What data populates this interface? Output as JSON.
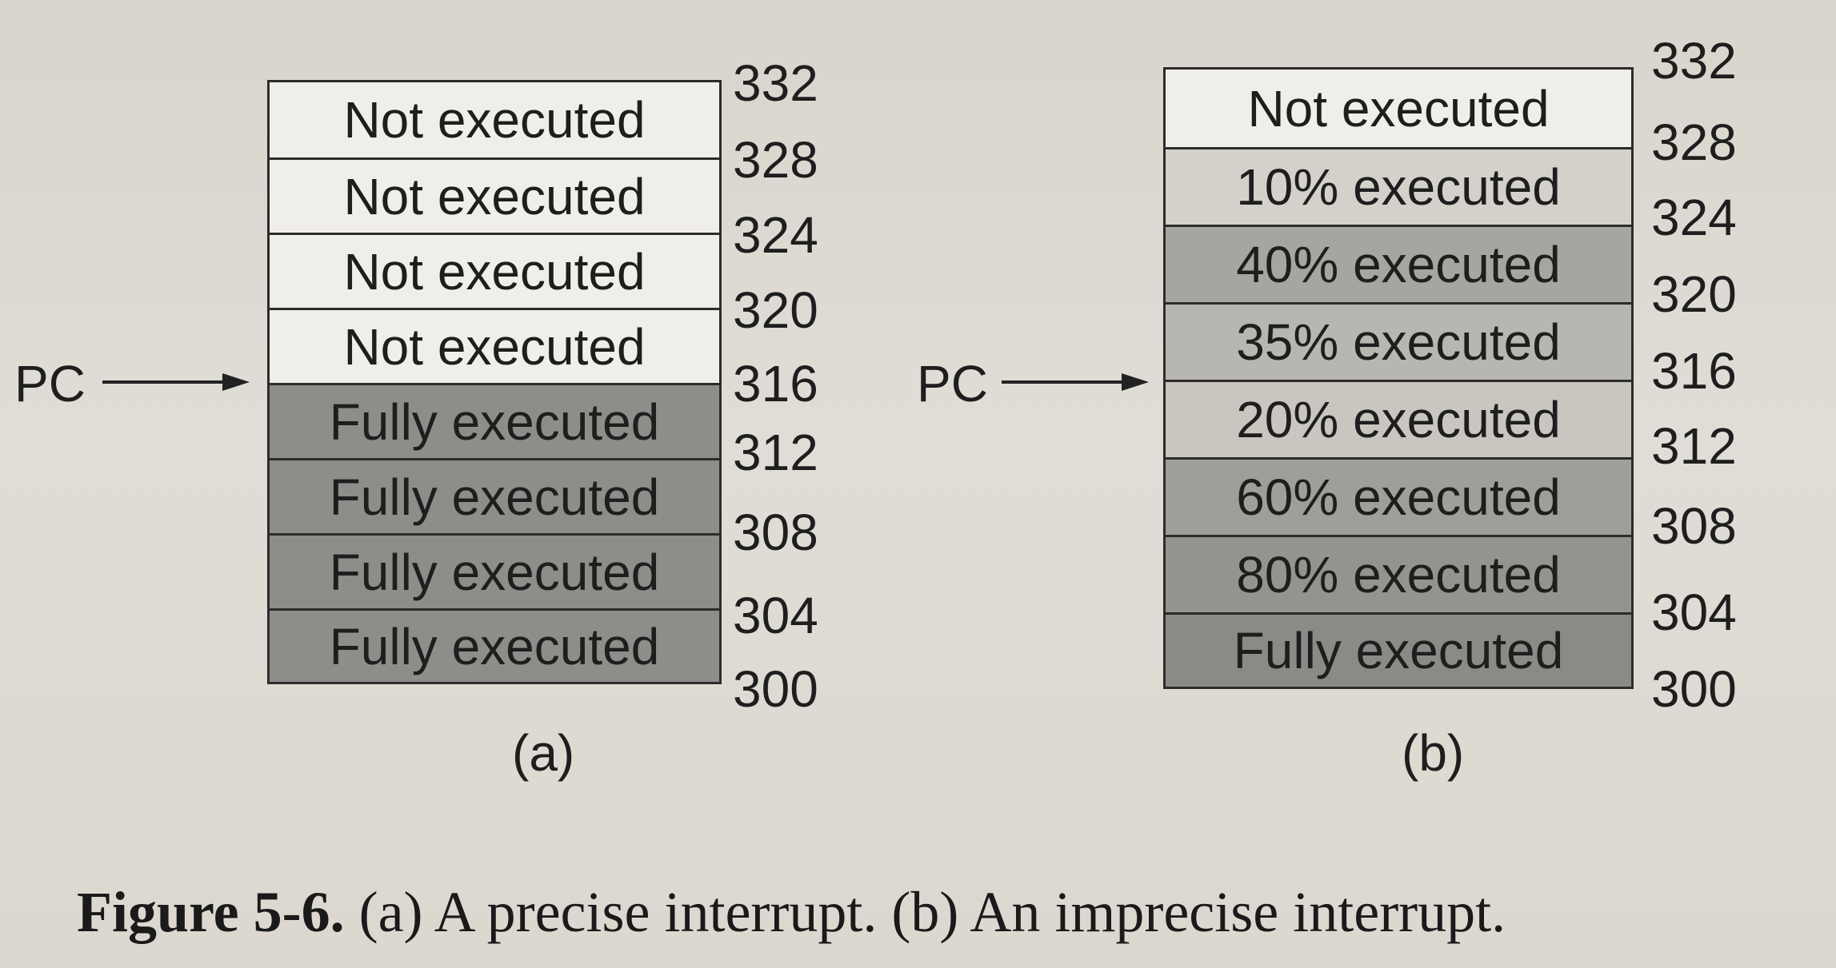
{
  "diagram_a": {
    "label": "(a)",
    "pc_label": "PC",
    "addresses": [
      "332",
      "328",
      "324",
      "320",
      "316",
      "312",
      "308",
      "304",
      "300"
    ],
    "cells": [
      {
        "text": "Not executed",
        "shade": "#f0eee8"
      },
      {
        "text": "Not executed",
        "shade": "#f0eee8"
      },
      {
        "text": "Not executed",
        "shade": "#f0eee8"
      },
      {
        "text": "Not executed",
        "shade": "#f0eee8"
      },
      {
        "text": "Fully executed",
        "shade": "#8f8d89"
      },
      {
        "text": "Fully executed",
        "shade": "#8f8d89"
      },
      {
        "text": "Fully executed",
        "shade": "#8f8d89"
      },
      {
        "text": "Fully executed",
        "shade": "#8f8d89"
      }
    ],
    "pc_points_at_address": "316"
  },
  "diagram_b": {
    "label": "(b)",
    "pc_label": "PC",
    "addresses": [
      "332",
      "328",
      "324",
      "320",
      "316",
      "312",
      "308",
      "304",
      "300"
    ],
    "cells": [
      {
        "text": "Not executed",
        "shade": "#f0eee8"
      },
      {
        "text": "10% executed",
        "shade": "#d4d1cb"
      },
      {
        "text": "40% executed",
        "shade": "#a7a5a0"
      },
      {
        "text": "35% executed",
        "shade": "#b8b6b0"
      },
      {
        "text": "20% executed",
        "shade": "#c9c6c0"
      },
      {
        "text": "60% executed",
        "shade": "#a09e99"
      },
      {
        "text": "80% executed",
        "shade": "#95938e"
      },
      {
        "text": "Fully executed",
        "shade": "#8c8a86"
      }
    ],
    "pc_points_at_address": "316"
  },
  "caption": {
    "figure_number": "Figure 5-6.",
    "text": "(a) A precise interrupt. (b) An imprecise interrupt."
  }
}
